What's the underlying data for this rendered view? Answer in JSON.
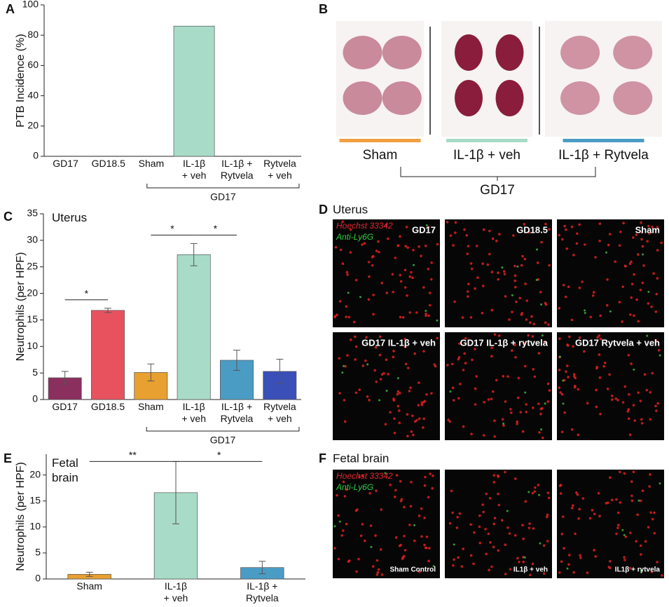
{
  "chart_data": [
    {
      "type": "bar",
      "panel": "A",
      "y_label": "PTB Incidence (%)",
      "categories": [
        "GD17",
        "GD18.5",
        "Sham",
        "IL-1β\n+ veh",
        "IL-1β +\nRytvela",
        "Rytvela\n+ veh"
      ],
      "values": [
        0,
        0,
        0,
        86,
        0,
        0
      ],
      "color": "#a8dcc8",
      "ylim": [
        0,
        100
      ],
      "yticks": [
        0,
        20,
        40,
        60,
        80,
        100
      ],
      "group": {
        "label": "GD17",
        "span": [
          "Sham",
          "Rytvela\n+ veh"
        ]
      }
    },
    {
      "type": "bar",
      "panel": "C",
      "y_label": "Neutrophils (per HPF)",
      "annotation": "Uterus",
      "categories": [
        "GD17",
        "GD18.5",
        "Sham",
        "IL-1β\n+ veh",
        "IL-1β +\nRytvela",
        "Rytvela\n+ veh"
      ],
      "values": [
        4.1,
        16.8,
        5.1,
        27.3,
        7.4,
        5.3
      ],
      "errors": [
        1.2,
        0.4,
        1.6,
        2.1,
        1.9,
        2.3
      ],
      "colors": [
        "#8b2f5e",
        "#e8525f",
        "#e8a030",
        "#a8dcc8",
        "#4a9cc4",
        "#3a4fb8"
      ],
      "ylim": [
        0,
        35
      ],
      "yticks": [
        0,
        5,
        10,
        15,
        20,
        25,
        30,
        35
      ],
      "significance": [
        {
          "label": "*",
          "between": [
            "GD17",
            "GD18.5"
          ]
        },
        {
          "label": "*",
          "between": [
            "Sham",
            "IL-1β\n+ veh"
          ]
        },
        {
          "label": "*",
          "between": [
            "IL-1β\n+ veh",
            "IL-1β +\nRytvela"
          ]
        }
      ],
      "group": {
        "label": "GD17",
        "span": [
          "Sham",
          "Rytvela\n+ veh"
        ]
      }
    },
    {
      "type": "bar",
      "panel": "E",
      "y_label": "Neutrophils (per HPF)",
      "annotation": "Fetal\nbrain",
      "categories": [
        "Sham",
        "IL-1β\n+ veh",
        "IL-1β +\nRytvela"
      ],
      "values": [
        0.9,
        16.6,
        2.2
      ],
      "errors": [
        0.4,
        6.0,
        1.2
      ],
      "colors": [
        "#e8a030",
        "#a8dcc8",
        "#4a9cc4"
      ],
      "ylim": [
        0,
        24
      ],
      "yticks": [
        0,
        5,
        10,
        15,
        20
      ],
      "significance": [
        {
          "label": "**",
          "between": [
            "Sham",
            "IL-1β\n+ veh"
          ]
        },
        {
          "label": "*",
          "between": [
            "IL-1β\n+ veh",
            "IL-1β +\nRytvela"
          ]
        }
      ]
    }
  ],
  "photo_panel": {
    "label": "B",
    "groups": [
      {
        "name": "Sham",
        "color": "#f0a040"
      },
      {
        "name": "IL-1β + veh",
        "color": "#a8dcc8"
      },
      {
        "name": "IL-1β + Rytvela",
        "color": "#4a9cc4"
      }
    ],
    "bracket_label": "GD17"
  },
  "uterus_panel": {
    "label": "D",
    "title": "Uterus",
    "stain_labels": [
      "Hoechst 33342",
      "Anti-Ly6G"
    ],
    "images": [
      "GD17",
      "GD18.5",
      "Sham",
      "GD17 IL-1β + veh",
      "GD17 IL-1β + rytvela",
      "GD17 Rytvela + veh"
    ]
  },
  "brain_panel": {
    "label": "F",
    "title": "Fetal brain",
    "stain_labels": [
      "Hoechst 33342",
      "Anti-Ly6G"
    ],
    "images": [
      "Sham Control",
      "IL1β + veh",
      "IL1β + rytvela"
    ]
  }
}
